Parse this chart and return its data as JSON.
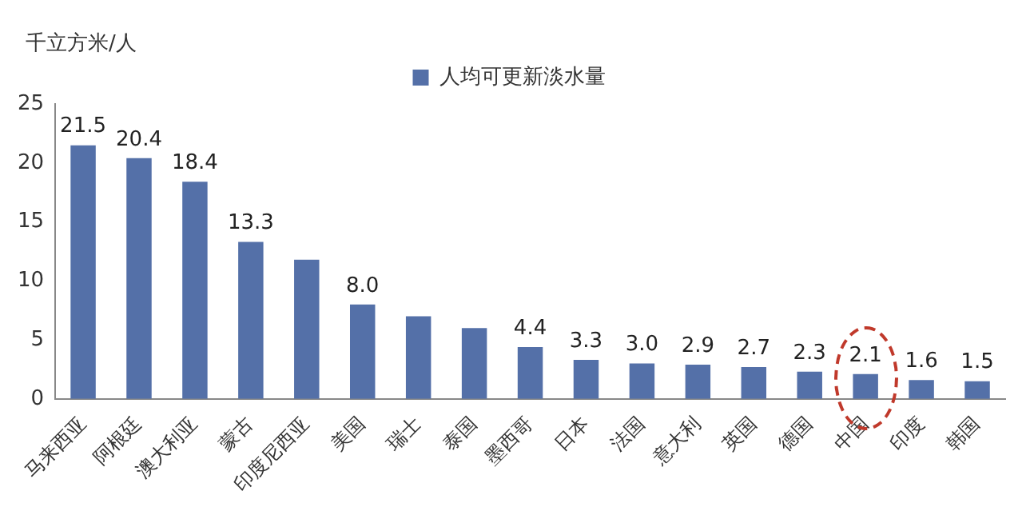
{
  "chart_data": {
    "type": "bar",
    "ylabel": "千立方米/人",
    "categories": [
      "马来西亚",
      "阿根廷",
      "澳大利亚",
      "蒙古",
      "印度尼西亚",
      "美国",
      "瑞士",
      "泰国",
      "墨西哥",
      "日本",
      "法国",
      "意大利",
      "英国",
      "德国",
      "中国",
      "印度",
      "韩国"
    ],
    "series": [
      {
        "name": "人均可更新淡水量",
        "color": "#5470a8",
        "values": [
          21.5,
          20.4,
          18.4,
          13.3,
          11.8,
          8.0,
          7.0,
          6.0,
          4.4,
          3.3,
          3.0,
          2.9,
          2.7,
          2.3,
          2.1,
          1.6,
          1.5
        ],
        "value_labels": [
          "21.5",
          "20.4",
          "18.4",
          "13.3",
          null,
          "8.0",
          null,
          null,
          "4.4",
          "3.3",
          "3.0",
          "2.9",
          "2.7",
          "2.3",
          "2.1",
          "1.6",
          "1.5"
        ]
      }
    ],
    "ylim": [
      0,
      25
    ],
    "yticks": [
      0,
      5,
      10,
      15,
      20,
      25
    ],
    "grid": false,
    "legend": "top"
  }
}
